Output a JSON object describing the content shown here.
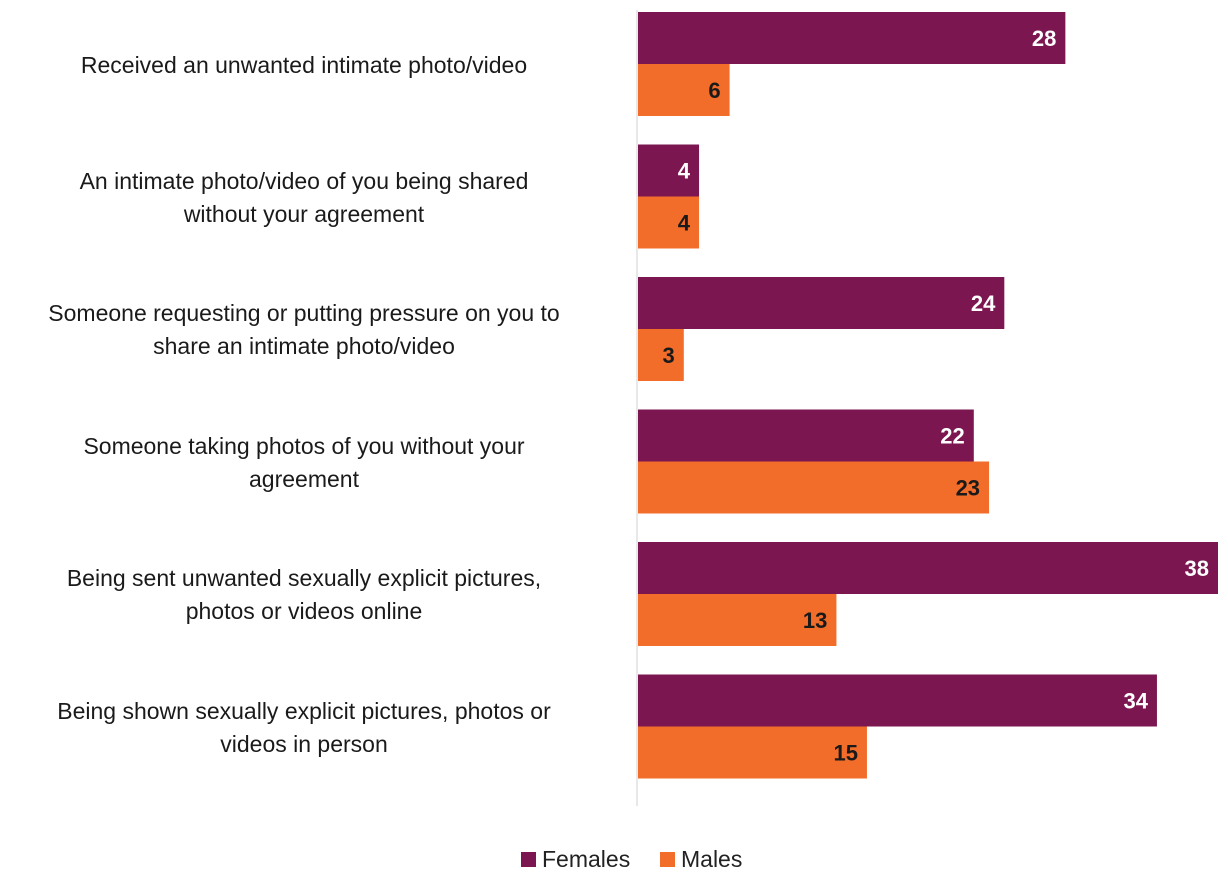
{
  "chart_data": {
    "type": "bar",
    "orientation": "horizontal",
    "categories": [
      "Received an unwanted intimate photo/video",
      "An intimate photo/video of you being shared\nwithout your agreement",
      "Someone requesting or putting pressure on you to\nshare an intimate photo/video",
      "Someone taking photos of you without your\nagreement",
      "Being sent unwanted sexually explicit pictures,\nphotos or videos online",
      "Being shown sexually explicit pictures, photos or\nvideos in person"
    ],
    "series": [
      {
        "name": "Females",
        "values": [
          28,
          4,
          24,
          22,
          38,
          34
        ],
        "color": "#7b1650",
        "label_color": "#ffffff"
      },
      {
        "name": "Males",
        "values": [
          6,
          4,
          3,
          23,
          13,
          15
        ],
        "color": "#f26c2a",
        "label_color": "#1a1a1a"
      }
    ],
    "xlim": [
      0,
      38
    ],
    "legend_position": "bottom",
    "grid": false,
    "data_labels": true
  }
}
